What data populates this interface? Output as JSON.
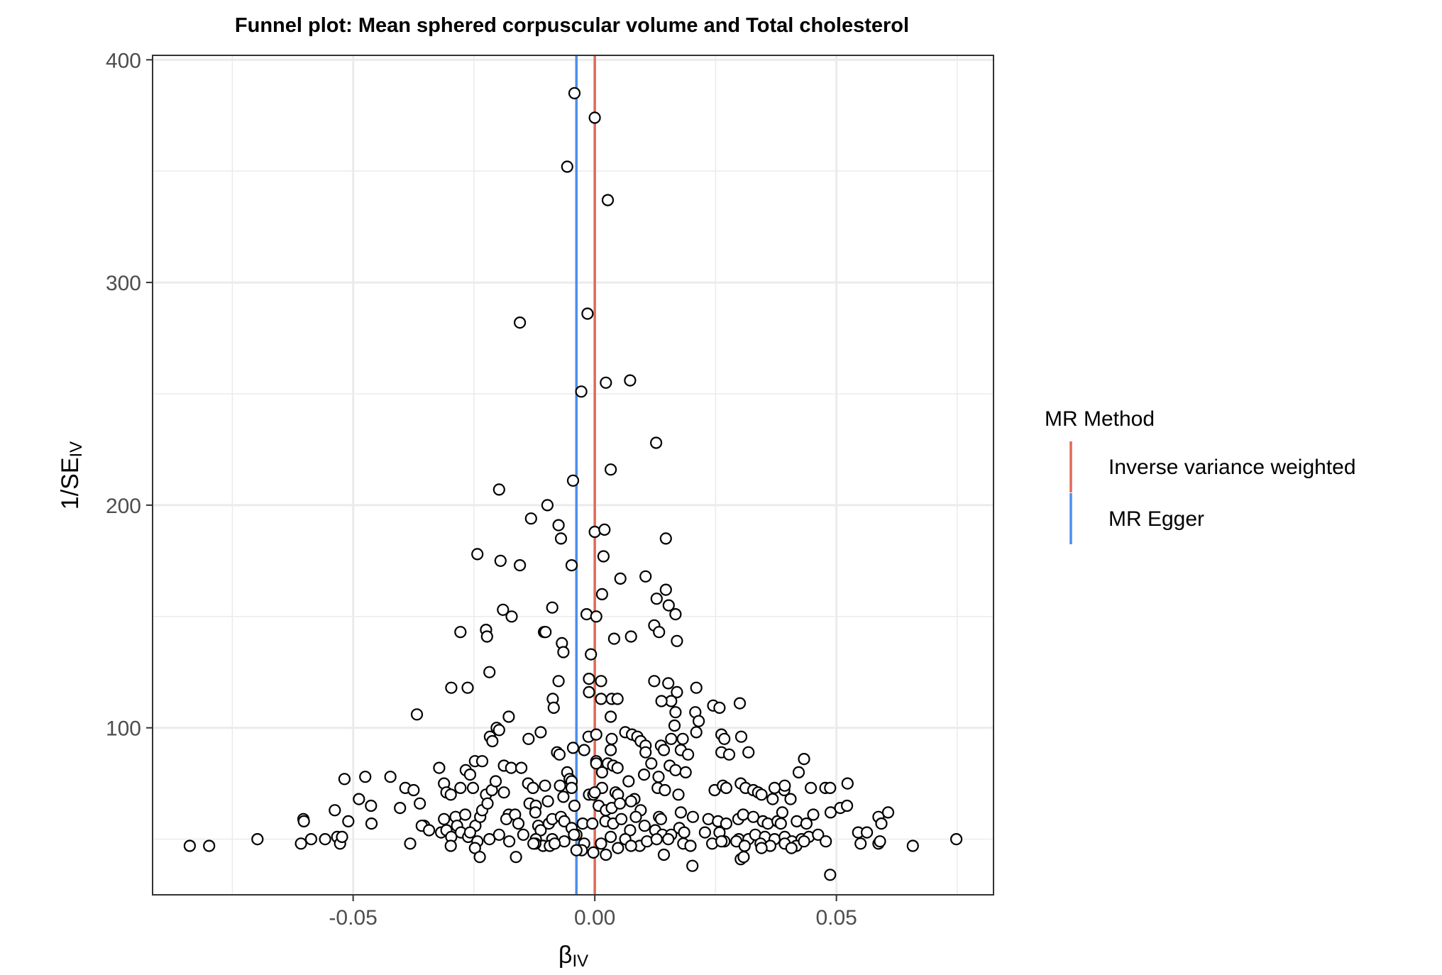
{
  "chart_data": {
    "type": "scatter",
    "title": "Funnel plot: Mean sphered corpuscular volume and Total cholesterol",
    "xlabel": {
      "main": "β",
      "sub": "IV"
    },
    "ylabel": {
      "main": "1/SE",
      "sub": "IV"
    },
    "xlim": [
      -0.0915,
      0.0825
    ],
    "ylim": [
      25,
      402
    ],
    "x_ticks": [
      {
        "value": -0.05,
        "label": "-0.05"
      },
      {
        "value": 0.0,
        "label": "0.00"
      },
      {
        "value": 0.05,
        "label": "0.05"
      }
    ],
    "y_ticks": [
      {
        "value": 100,
        "label": "100"
      },
      {
        "value": 200,
        "label": "200"
      },
      {
        "value": 300,
        "label": "300"
      },
      {
        "value": 400,
        "label": "400"
      }
    ],
    "x_minor": [
      -0.075,
      -0.025,
      0.025,
      0.075
    ],
    "y_minor": [
      50,
      150,
      250,
      350
    ],
    "grid": true,
    "legend": {
      "title": "MR Method",
      "placement": "right",
      "entries": [
        {
          "label": "Inverse variance weighted",
          "color": "#E06A58"
        },
        {
          "label": "MR Egger",
          "color": "#4A8FEF"
        }
      ]
    },
    "vlines": [
      {
        "method": "Inverse variance weighted",
        "x": 0.0,
        "color": "#E06A58"
      },
      {
        "method": "MR Egger",
        "x": -0.0038,
        "color": "#4A8FEF"
      }
    ],
    "points": [
      [
        -0.0042,
        385
      ],
      [
        0.0,
        374
      ],
      [
        -0.0057,
        352
      ],
      [
        0.0027,
        337
      ],
      [
        -0.0015,
        286
      ],
      [
        -0.0155,
        282
      ],
      [
        -0.0028,
        251
      ],
      [
        0.0023,
        255
      ],
      [
        0.0073,
        256
      ],
      [
        0.0127,
        228
      ],
      [
        0.0033,
        216
      ],
      [
        -0.0045,
        211
      ],
      [
        -0.0198,
        207
      ],
      [
        -0.0098,
        200
      ],
      [
        -0.0132,
        194
      ],
      [
        -0.0075,
        191
      ],
      [
        0.0,
        188
      ],
      [
        0.002,
        189
      ],
      [
        0.0147,
        185
      ],
      [
        -0.007,
        185
      ],
      [
        -0.0243,
        178
      ],
      [
        -0.0195,
        175
      ],
      [
        -0.0155,
        173
      ],
      [
        -0.0048,
        173
      ],
      [
        0.0018,
        177
      ],
      [
        0.0105,
        168
      ],
      [
        0.0053,
        167
      ],
      [
        0.0147,
        162
      ],
      [
        0.0128,
        158
      ],
      [
        0.0153,
        155
      ],
      [
        0.0015,
        160
      ],
      [
        -0.019,
        153
      ],
      [
        -0.0088,
        154
      ],
      [
        -0.0172,
        150
      ],
      [
        -0.0017,
        151
      ],
      [
        0.0003,
        150
      ],
      [
        0.0167,
        151
      ],
      [
        -0.0225,
        144
      ],
      [
        -0.0278,
        143
      ],
      [
        -0.0223,
        141
      ],
      [
        -0.0105,
        143
      ],
      [
        -0.0102,
        143
      ],
      [
        0.0123,
        146
      ],
      [
        0.0133,
        143
      ],
      [
        0.0075,
        141
      ],
      [
        0.004,
        140
      ],
      [
        0.017,
        139
      ],
      [
        -0.0068,
        138
      ],
      [
        -0.0065,
        134
      ],
      [
        -0.0008,
        133
      ],
      [
        -0.0218,
        125
      ],
      [
        -0.0297,
        118
      ],
      [
        -0.0263,
        118
      ],
      [
        -0.0075,
        121
      ],
      [
        -0.0012,
        122
      ],
      [
        0.0013,
        121
      ],
      [
        0.0123,
        121
      ],
      [
        0.0152,
        120
      ],
      [
        0.021,
        118
      ],
      [
        -0.0012,
        116
      ],
      [
        0.017,
        116
      ],
      [
        0.0013,
        113
      ],
      [
        0.0035,
        113
      ],
      [
        0.0047,
        113
      ],
      [
        0.0158,
        112
      ],
      [
        0.0138,
        112
      ],
      [
        0.03,
        111
      ],
      [
        -0.0087,
        113
      ],
      [
        -0.0085,
        109
      ],
      [
        0.0245,
        110
      ],
      [
        0.0258,
        109
      ],
      [
        -0.0368,
        106
      ],
      [
        -0.0178,
        105
      ],
      [
        0.0033,
        105
      ],
      [
        0.0167,
        107
      ],
      [
        0.0208,
        107
      ],
      [
        0.0215,
        103
      ],
      [
        -0.0203,
        100
      ],
      [
        -0.0198,
        99
      ],
      [
        -0.0217,
        96
      ],
      [
        -0.0212,
        94
      ],
      [
        -0.0137,
        95
      ],
      [
        -0.0112,
        98
      ],
      [
        -0.0013,
        96
      ],
      [
        0.0003,
        97
      ],
      [
        0.0035,
        95
      ],
      [
        0.0063,
        98
      ],
      [
        0.0077,
        97
      ],
      [
        0.0088,
        96
      ],
      [
        0.0095,
        94
      ],
      [
        0.0105,
        92
      ],
      [
        0.0137,
        92
      ],
      [
        0.0158,
        95
      ],
      [
        0.0182,
        95
      ],
      [
        0.0165,
        101
      ],
      [
        0.021,
        98
      ],
      [
        0.0262,
        97
      ],
      [
        0.0268,
        95
      ],
      [
        0.0303,
        96
      ],
      [
        -0.0045,
        91
      ],
      [
        -0.0022,
        90
      ],
      [
        -0.0078,
        89
      ],
      [
        -0.0073,
        88
      ],
      [
        0.0033,
        90
      ],
      [
        0.0105,
        89
      ],
      [
        0.0143,
        90
      ],
      [
        0.0178,
        90
      ],
      [
        0.0193,
        88
      ],
      [
        0.0262,
        89
      ],
      [
        0.0278,
        88
      ],
      [
        0.0318,
        89
      ],
      [
        0.0433,
        86
      ],
      [
        -0.0248,
        85
      ],
      [
        -0.0233,
        85
      ],
      [
        -0.0188,
        83
      ],
      [
        -0.0173,
        82
      ],
      [
        -0.0152,
        82
      ],
      [
        0.0003,
        85
      ],
      [
        0.0003,
        84
      ],
      [
        0.0027,
        84
      ],
      [
        0.0038,
        83
      ],
      [
        0.0047,
        82
      ],
      [
        0.0117,
        84
      ],
      [
        0.0155,
        83
      ],
      [
        0.0167,
        81
      ],
      [
        0.0188,
        80
      ],
      [
        0.0422,
        80
      ],
      [
        -0.0322,
        82
      ],
      [
        -0.0267,
        81
      ],
      [
        -0.0258,
        79
      ],
      [
        -0.0057,
        80
      ],
      [
        -0.0052,
        77
      ],
      [
        -0.0048,
        76
      ],
      [
        0.0015,
        80
      ],
      [
        0.007,
        76
      ],
      [
        0.0102,
        79
      ],
      [
        0.0132,
        78
      ],
      [
        -0.0138,
        75
      ],
      [
        -0.0103,
        74
      ],
      [
        -0.0128,
        73
      ],
      [
        -0.0072,
        74
      ],
      [
        -0.0048,
        73
      ],
      [
        0.0015,
        73
      ],
      [
        0.0043,
        71
      ],
      [
        0.0048,
        70
      ],
      [
        0.0082,
        68
      ],
      [
        0.013,
        73
      ],
      [
        0.0145,
        72
      ],
      [
        0.0173,
        70
      ],
      [
        0.0248,
        72
      ],
      [
        0.0265,
        74
      ],
      [
        0.0272,
        73
      ],
      [
        0.0302,
        75
      ],
      [
        0.0312,
        73
      ],
      [
        0.0328,
        72
      ],
      [
        0.0338,
        71
      ],
      [
        0.0345,
        70
      ],
      [
        0.0368,
        68
      ],
      [
        0.0392,
        72
      ],
      [
        0.0393,
        74
      ],
      [
        0.0405,
        68
      ],
      [
        0.0372,
        73
      ],
      [
        0.0447,
        73
      ],
      [
        0.0477,
        73
      ],
      [
        0.0487,
        73
      ],
      [
        0.0523,
        75
      ],
      [
        -0.0518,
        77
      ],
      [
        -0.0475,
        78
      ],
      [
        -0.0423,
        78
      ],
      [
        -0.0392,
        73
      ],
      [
        -0.0375,
        72
      ],
      [
        -0.0312,
        75
      ],
      [
        -0.0307,
        71
      ],
      [
        -0.0298,
        70
      ],
      [
        -0.0278,
        73
      ],
      [
        -0.0252,
        73
      ],
      [
        -0.0225,
        70
      ],
      [
        -0.0213,
        72
      ],
      [
        -0.0205,
        76
      ],
      [
        -0.0188,
        71
      ],
      [
        -0.0135,
        66
      ],
      [
        -0.0122,
        65
      ],
      [
        -0.0097,
        67
      ],
      [
        -0.0065,
        69
      ],
      [
        -0.0042,
        65
      ],
      [
        -0.0012,
        70
      ],
      [
        -0.0003,
        70
      ],
      [
        0.0,
        71
      ],
      [
        0.0008,
        65
      ],
      [
        0.0023,
        63
      ],
      [
        0.0035,
        64
      ],
      [
        0.0052,
        66
      ],
      [
        0.0075,
        67
      ],
      [
        0.0095,
        63
      ],
      [
        0.0133,
        60
      ],
      [
        0.0137,
        59
      ],
      [
        0.0178,
        62
      ],
      [
        0.0203,
        60
      ],
      [
        0.0235,
        59
      ],
      [
        0.0255,
        58
      ],
      [
        0.0272,
        57
      ],
      [
        0.0297,
        59
      ],
      [
        0.0307,
        61
      ],
      [
        0.0328,
        60
      ],
      [
        0.0348,
        58
      ],
      [
        0.0358,
        57
      ],
      [
        0.0378,
        58
      ],
      [
        0.0388,
        62
      ],
      [
        0.0385,
        57
      ],
      [
        0.0418,
        58
      ],
      [
        0.0438,
        57
      ],
      [
        0.0452,
        61
      ],
      [
        0.0488,
        62
      ],
      [
        0.0508,
        64
      ],
      [
        0.0522,
        65
      ],
      [
        -0.0538,
        63
      ],
      [
        -0.051,
        58
      ],
      [
        -0.0488,
        68
      ],
      [
        -0.0463,
        65
      ],
      [
        -0.0462,
        57
      ],
      [
        -0.0403,
        64
      ],
      [
        -0.0362,
        66
      ],
      [
        -0.0353,
        56
      ],
      [
        -0.0312,
        59
      ],
      [
        -0.0288,
        60
      ],
      [
        -0.0285,
        56
      ],
      [
        -0.0268,
        61
      ],
      [
        -0.0247,
        56
      ],
      [
        -0.0237,
        60
      ],
      [
        -0.0233,
        63
      ],
      [
        -0.0222,
        66
      ],
      [
        -0.0178,
        61
      ],
      [
        -0.0183,
        59
      ],
      [
        -0.0165,
        61
      ],
      [
        -0.0158,
        57
      ],
      [
        -0.0123,
        62
      ],
      [
        -0.0117,
        56
      ],
      [
        -0.0112,
        54
      ],
      [
        -0.0095,
        57
      ],
      [
        -0.0088,
        59
      ],
      [
        -0.007,
        60
      ],
      [
        -0.0063,
        58
      ],
      [
        -0.0048,
        55
      ],
      [
        -0.0038,
        52
      ],
      [
        -0.0025,
        57
      ],
      [
        -0.0005,
        57
      ],
      [
        0.0022,
        58
      ],
      [
        0.0038,
        57
      ],
      [
        0.0055,
        59
      ],
      [
        0.0073,
        54
      ],
      [
        0.0085,
        60
      ],
      [
        0.0103,
        56
      ],
      [
        0.0125,
        54
      ],
      [
        0.014,
        52
      ],
      [
        0.0158,
        52
      ],
      [
        0.0175,
        55
      ],
      [
        0.0185,
        53
      ],
      [
        0.0228,
        53
      ],
      [
        0.0258,
        53
      ],
      [
        0.0268,
        49
      ],
      [
        0.0298,
        50
      ],
      [
        0.0318,
        50
      ],
      [
        0.0332,
        52
      ],
      [
        0.0352,
        51
      ],
      [
        0.0372,
        50
      ],
      [
        0.0393,
        51
      ],
      [
        0.0408,
        49
      ],
      [
        0.0428,
        50
      ],
      [
        0.0443,
        51
      ],
      [
        0.0462,
        52
      ],
      [
        0.0478,
        49
      ],
      [
        0.0545,
        53
      ],
      [
        0.0563,
        53
      ],
      [
        0.0587,
        60
      ],
      [
        0.0593,
        57
      ],
      [
        0.0607,
        62
      ],
      [
        -0.0603,
        59
      ],
      [
        -0.0602,
        58
      ],
      [
        -0.0558,
        50
      ],
      [
        -0.0533,
        51
      ],
      [
        -0.0527,
        48
      ],
      [
        -0.0523,
        51
      ],
      [
        -0.0382,
        48
      ],
      [
        -0.0358,
        56
      ],
      [
        -0.0343,
        54
      ],
      [
        -0.0318,
        53
      ],
      [
        -0.0307,
        54
      ],
      [
        -0.0297,
        51
      ],
      [
        -0.0277,
        53
      ],
      [
        -0.0262,
        51
      ],
      [
        -0.0243,
        49
      ],
      [
        -0.0218,
        50
      ],
      [
        -0.0198,
        52
      ],
      [
        -0.0177,
        49
      ],
      [
        -0.0148,
        52
      ],
      [
        -0.0122,
        50
      ],
      [
        -0.0107,
        47
      ],
      [
        -0.0088,
        50
      ],
      [
        -0.0063,
        49
      ],
      [
        -0.0043,
        52
      ],
      [
        -0.0022,
        48
      ],
      [
        0.0013,
        48
      ],
      [
        0.0033,
        51
      ],
      [
        0.0063,
        50
      ],
      [
        0.0093,
        47
      ],
      [
        0.0108,
        49
      ],
      [
        0.0128,
        50
      ],
      [
        0.0152,
        50
      ],
      [
        0.0183,
        48
      ],
      [
        0.0198,
        47
      ],
      [
        0.0243,
        48
      ],
      [
        0.0262,
        49
      ],
      [
        0.0293,
        49
      ],
      [
        0.031,
        47
      ],
      [
        0.0343,
        48
      ],
      [
        0.0363,
        47
      ],
      [
        0.0393,
        48
      ],
      [
        0.0417,
        47
      ],
      [
        0.0433,
        49
      ],
      [
        0.055,
        48
      ],
      [
        0.0587,
        48
      ],
      [
        0.059,
        49
      ],
      [
        -0.0838,
        47
      ],
      [
        -0.0798,
        47
      ],
      [
        -0.0698,
        50
      ],
      [
        -0.0608,
        48
      ],
      [
        -0.0587,
        50
      ],
      [
        -0.0258,
        53
      ],
      [
        -0.0248,
        46
      ],
      [
        -0.0298,
        47
      ],
      [
        -0.0123,
        48
      ],
      [
        -0.0093,
        47
      ],
      [
        -0.0083,
        48
      ],
      [
        -0.0027,
        45
      ],
      [
        -0.0003,
        44
      ],
      [
        0.0048,
        46
      ],
      [
        0.0075,
        47
      ],
      [
        0.0143,
        43
      ],
      [
        0.0202,
        38
      ],
      [
        0.0302,
        41
      ],
      [
        0.0308,
        42
      ],
      [
        0.0345,
        46
      ],
      [
        0.0407,
        46
      ],
      [
        0.0487,
        34
      ],
      [
        0.0658,
        47
      ],
      [
        0.0748,
        50
      ],
      [
        -0.0238,
        42
      ],
      [
        -0.0163,
        42
      ],
      [
        -0.0127,
        48
      ],
      [
        -0.0038,
        45
      ],
      [
        0.0023,
        43
      ]
    ]
  }
}
